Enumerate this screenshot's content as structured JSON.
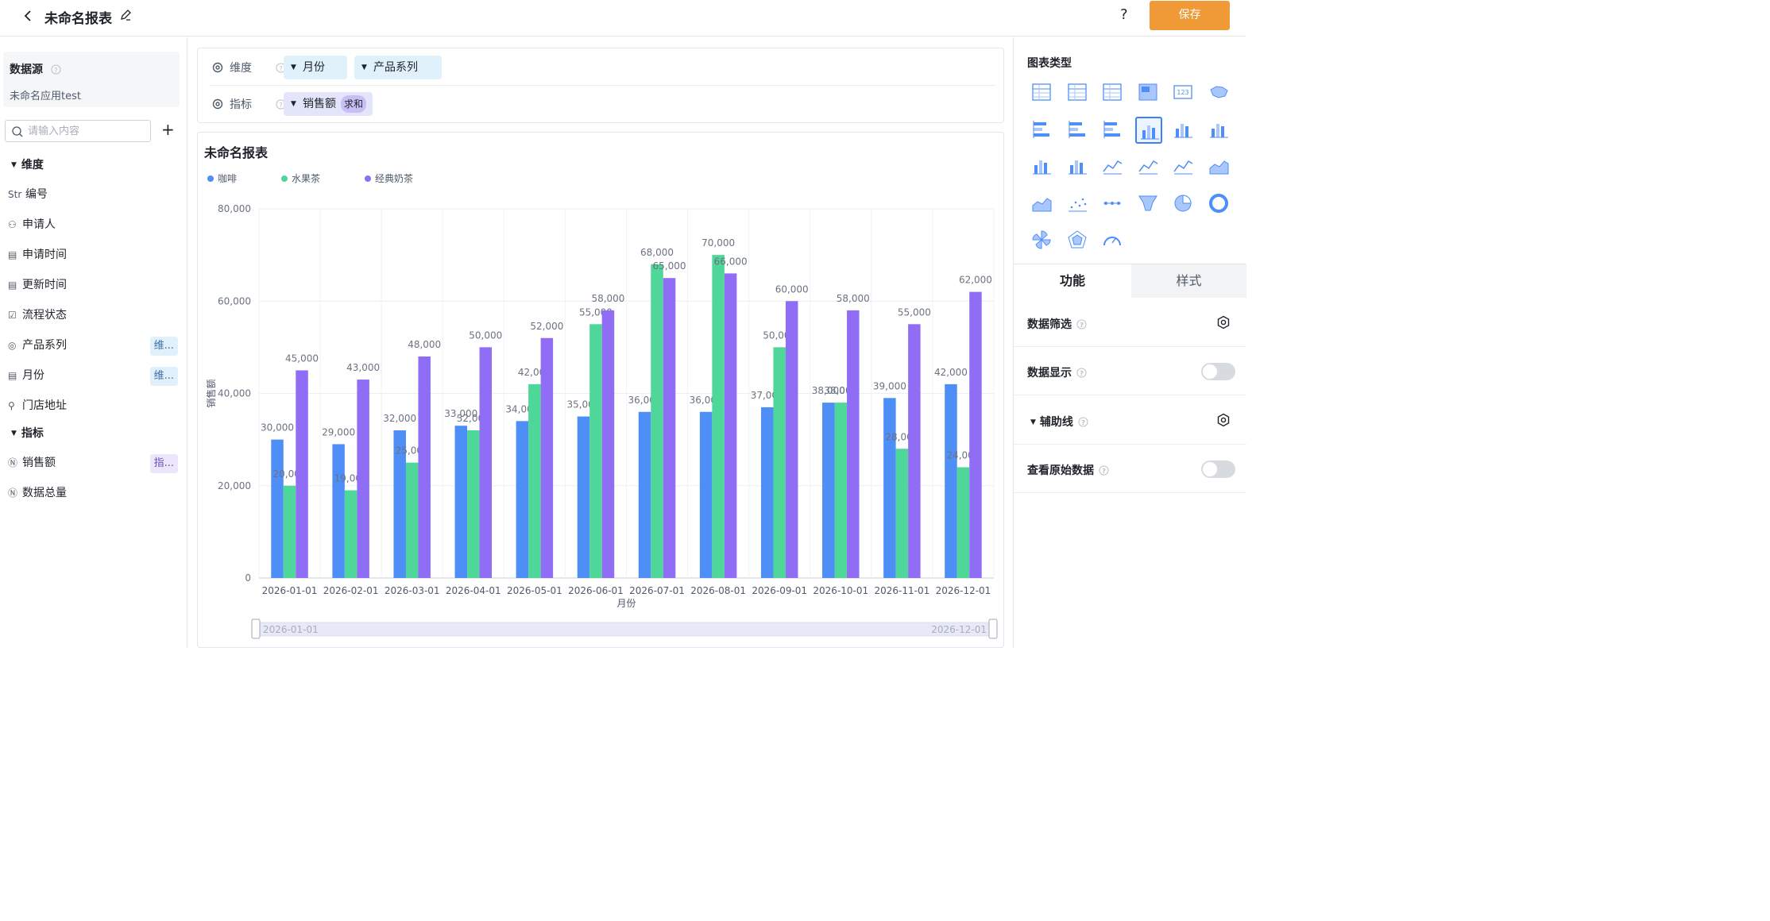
{
  "header": {
    "title": "未命名报表",
    "help_label": "?",
    "save_label": "保存"
  },
  "sidebar": {
    "datasource_title": "数据源",
    "datasource_name": "未命名应用test",
    "search_placeholder": "请输入内容",
    "dimension_section": "维度",
    "metric_section": "指标",
    "dimensions": [
      {
        "icon": "Str",
        "label": "编号",
        "tag": ""
      },
      {
        "icon": "person-icon",
        "label": "申请人",
        "tag": ""
      },
      {
        "icon": "calendar-icon",
        "label": "申请时间",
        "tag": ""
      },
      {
        "icon": "calendar-icon",
        "label": "更新时间",
        "tag": ""
      },
      {
        "icon": "checkbox-icon",
        "label": "流程状态",
        "tag": ""
      },
      {
        "icon": "radio-icon",
        "label": "产品系列",
        "tag": "维..."
      },
      {
        "icon": "calendar-icon",
        "label": "月份",
        "tag": "维..."
      },
      {
        "icon": "location-icon",
        "label": "门店地址",
        "tag": ""
      }
    ],
    "metrics": [
      {
        "icon": "number-icon",
        "label": "销售额",
        "tag": "指..."
      },
      {
        "icon": "number-icon",
        "label": "数据总量",
        "tag": ""
      }
    ]
  },
  "config": {
    "dimension_label": "维度",
    "metric_label": "指标",
    "dimension_pills": [
      "月份",
      "产品系列"
    ],
    "metric_pill": "销售额",
    "metric_agg": "求和"
  },
  "right_panel": {
    "chart_type_title": "图表类型",
    "tab_function": "功能",
    "tab_style": "样式",
    "rows": [
      {
        "label": "数据筛选",
        "control": "gear"
      },
      {
        "label": "数据显示",
        "control": "toggle-off"
      },
      {
        "label": "辅助线",
        "control": "gear",
        "collapsible": true
      },
      {
        "label": "查看原始数据",
        "control": "toggle-off"
      }
    ],
    "selected_chart": "grouped-bar-chart"
  },
  "colors": {
    "coffee": "#4e8ef7",
    "fruit_tea": "#4fd699",
    "milk_tea": "#8f6ef5",
    "accent": "#f09a37"
  },
  "chart_data": {
    "type": "bar",
    "title": "未命名报表",
    "xlabel": "月份",
    "ylabel": "销售额",
    "ylim": [
      0,
      80000
    ],
    "yticks": [
      "0",
      "20,000",
      "40,000",
      "60,000",
      "80,000"
    ],
    "categories": [
      "2026-01-01",
      "2026-02-01",
      "2026-03-01",
      "2026-04-01",
      "2026-05-01",
      "2026-06-01",
      "2026-07-01",
      "2026-08-01",
      "2026-09-01",
      "2026-10-01",
      "2026-11-01",
      "2026-12-01"
    ],
    "series": [
      {
        "name": "咖啡",
        "values": [
          30000,
          29000,
          32000,
          33000,
          34000,
          35000,
          36000,
          36000,
          37000,
          38000,
          39000,
          42000
        ]
      },
      {
        "name": "水果茶",
        "values": [
          20000,
          19000,
          25000,
          32000,
          42000,
          55000,
          68000,
          70000,
          50000,
          38000,
          28000,
          24000
        ]
      },
      {
        "name": "经典奶茶",
        "values": [
          45000,
          43000,
          48000,
          50000,
          52000,
          58000,
          65000,
          66000,
          60000,
          58000,
          55000,
          62000
        ]
      }
    ],
    "legend_position": "top-left",
    "grid": true,
    "range_slider": {
      "start": "2026-01-01",
      "end": "2026-12-01"
    }
  }
}
